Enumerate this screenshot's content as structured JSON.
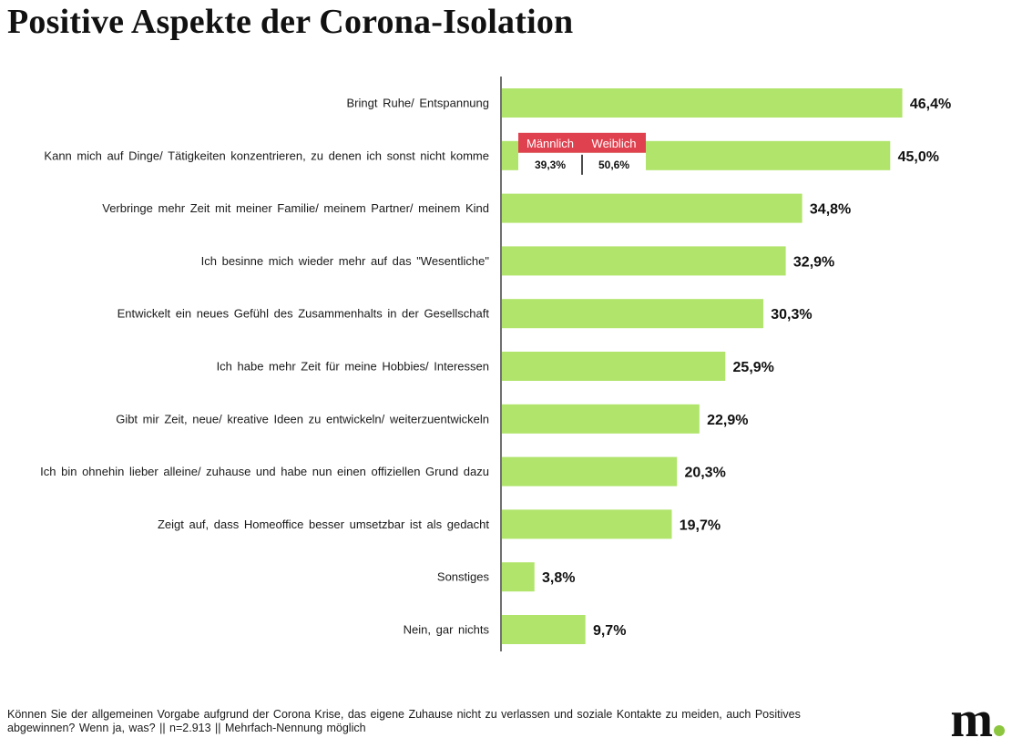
{
  "chart_data": {
    "type": "bar",
    "orientation": "horizontal",
    "title": "Positive Aspekte der Corona-Isolation",
    "categories": [
      "Bringt Ruhe/ Entspannung",
      "Kann mich auf Dinge/ Tätigkeiten konzentrieren, zu denen ich sonst nicht komme",
      "Verbringe mehr Zeit mit meiner Familie/ meinem Partner/ meinem Kind",
      "Ich besinne mich wieder mehr auf das \"Wesentliche\"",
      "Entwickelt ein neues Gefühl des Zusammenhalts in der Gesellschaft",
      "Ich habe mehr Zeit für meine Hobbies/ Interessen",
      "Gibt mir Zeit, neue/ kreative Ideen zu entwickeln/ weiterzuentwickeln",
      "Ich bin ohnehin lieber alleine/ zuhause und habe nun einen offiziellen Grund dazu",
      "Zeigt auf, dass Homeoffice besser umsetzbar ist als gedacht",
      "Sonstiges",
      "Nein, gar nichts"
    ],
    "values": [
      46.4,
      45.0,
      34.8,
      32.9,
      30.3,
      25.9,
      22.9,
      20.3,
      19.7,
      3.8,
      9.7
    ],
    "value_labels": [
      "46,4%",
      "45,0%",
      "34,8%",
      "32,9%",
      "30,3%",
      "25,9%",
      "22,9%",
      "20,3%",
      "19,7%",
      "3,8%",
      "9,7%"
    ],
    "xlim": [
      0,
      50
    ],
    "grid": false,
    "bar_color": "#b0e46a",
    "inset": {
      "category": "Kann mich auf Dinge/ Tätigkeiten konzentrieren, zu denen ich sonst nicht komme",
      "groups": [
        {
          "name": "Männlich",
          "value": 39.3,
          "label": "39,3%"
        },
        {
          "name": "Weiblich",
          "value": 50.6,
          "label": "50,6%"
        }
      ],
      "header_color": "#e0414f"
    }
  },
  "footnote": "Können Sie der allgemeinen Vorgabe aufgrund der Corona Krise, das eigene Zuhause nicht zu verlassen und soziale Kontakte zu meiden, auch Positives abgewinnen? Wenn ja, was? || n=2.913 || Mehrfach-Nennung möglich",
  "logo": {
    "text": "m",
    "dot_color": "#8cc63f"
  }
}
